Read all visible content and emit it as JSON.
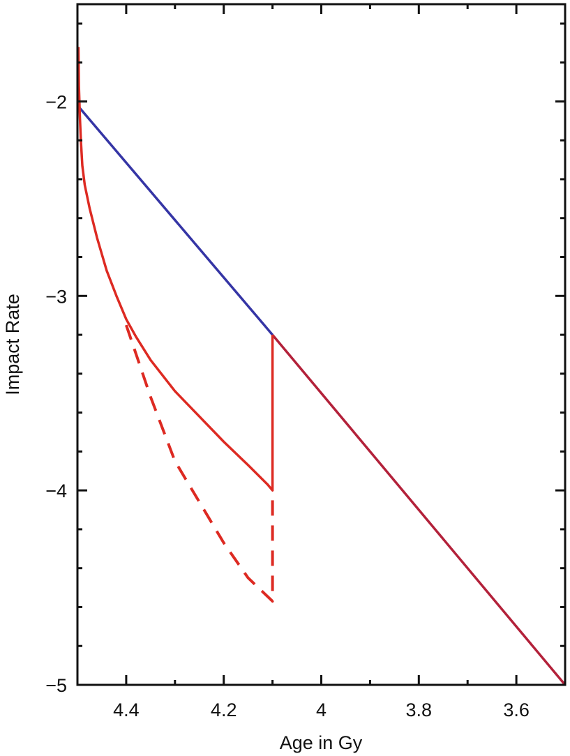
{
  "chart_data": {
    "type": "line",
    "title": "",
    "xlabel": "Age in Gy",
    "ylabel": "Impact Rate",
    "xlim": [
      4.5,
      3.5
    ],
    "ylim": [
      -5,
      -1.5
    ],
    "x_reversed": true,
    "grid": false,
    "x_ticks": [
      {
        "value": 4.4,
        "label": "4.4"
      },
      {
        "value": 4.2,
        "label": "4.2"
      },
      {
        "value": 4.0,
        "label": "4"
      },
      {
        "value": 3.8,
        "label": "3.8"
      },
      {
        "value": 3.6,
        "label": "3.6"
      }
    ],
    "y_ticks": [
      {
        "value": -2,
        "label": "−2"
      },
      {
        "value": -3,
        "label": "−3"
      },
      {
        "value": -4,
        "label": "−4"
      },
      {
        "value": -5,
        "label": "−5"
      }
    ],
    "series": [
      {
        "color": "#3535a5",
        "style": "solid",
        "x": [
          4.5,
          4.1
        ],
        "y": [
          -2.02,
          -3.2
        ]
      },
      {
        "color": "#b3213a",
        "style": "solid",
        "x": [
          4.1,
          3.5
        ],
        "y": [
          -3.2,
          -5.0
        ]
      },
      {
        "color": "#dd2a22",
        "style": "solid",
        "x": [
          4.498,
          4.497,
          4.495,
          4.493,
          4.49,
          4.485,
          4.475,
          4.46,
          4.44,
          4.42,
          4.4,
          4.38,
          4.35,
          4.3,
          4.25,
          4.2,
          4.15,
          4.11,
          4.1,
          4.1
        ],
        "y": [
          -1.72,
          -1.92,
          -2.08,
          -2.2,
          -2.33,
          -2.43,
          -2.55,
          -2.7,
          -2.87,
          -3.0,
          -3.12,
          -3.21,
          -3.33,
          -3.49,
          -3.62,
          -3.75,
          -3.87,
          -3.97,
          -4.0,
          -3.2
        ]
      },
      {
        "color": "#dd2a22",
        "style": "dashed",
        "x": [
          4.4,
          4.35,
          4.3,
          4.25,
          4.2,
          4.15,
          4.1,
          4.1
        ],
        "y": [
          -3.15,
          -3.52,
          -3.85,
          -4.06,
          -4.27,
          -4.45,
          -4.57,
          -4.0
        ]
      }
    ]
  }
}
